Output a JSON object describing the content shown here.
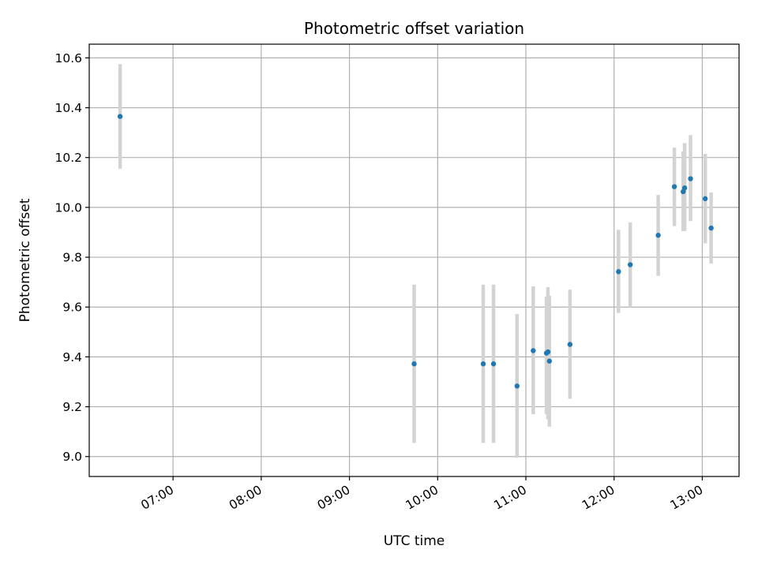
{
  "chart_data": {
    "type": "scatter",
    "title": "Photometric offset variation",
    "xlabel": "UTC time",
    "ylabel": "Photometric offset",
    "x_is_time": true,
    "xlim": [
      "06:03",
      "13:25"
    ],
    "ylim": [
      8.92,
      10.655
    ],
    "grid": true,
    "x_ticks": [
      "07:00",
      "08:00",
      "09:00",
      "10:00",
      "11:00",
      "12:00",
      "13:00"
    ],
    "y_ticks": [
      "9.0",
      "9.2",
      "9.4",
      "9.6",
      "9.8",
      "10.0",
      "10.2",
      "10.4",
      "10.6"
    ],
    "colors": {
      "point": "#1f77b4",
      "error_bar": "#d3d3d3",
      "grid": "#b0b0b0"
    },
    "points": [
      {
        "x": "06:24",
        "y": 10.365,
        "ylow": 10.155,
        "yhigh": 10.575
      },
      {
        "x": "09:44",
        "y": 9.372,
        "ylow": 9.055,
        "yhigh": 9.69
      },
      {
        "x": "10:31",
        "y": 9.372,
        "ylow": 9.055,
        "yhigh": 9.69
      },
      {
        "x": "10:38",
        "y": 9.372,
        "ylow": 9.055,
        "yhigh": 9.69
      },
      {
        "x": "10:54",
        "y": 9.283,
        "ylow": 8.995,
        "yhigh": 9.572
      },
      {
        "x": "11:05",
        "y": 9.425,
        "ylow": 9.17,
        "yhigh": 9.683
      },
      {
        "x": "11:14",
        "y": 9.415,
        "ylow": 9.17,
        "yhigh": 9.642
      },
      {
        "x": "11:15",
        "y": 9.42,
        "ylow": 9.15,
        "yhigh": 9.68
      },
      {
        "x": "11:16",
        "y": 9.383,
        "ylow": 9.12,
        "yhigh": 9.646
      },
      {
        "x": "11:30",
        "y": 9.45,
        "ylow": 9.232,
        "yhigh": 9.67
      },
      {
        "x": "12:03",
        "y": 9.742,
        "ylow": 9.576,
        "yhigh": 9.91
      },
      {
        "x": "12:11",
        "y": 9.77,
        "ylow": 9.6,
        "yhigh": 9.94
      },
      {
        "x": "12:30",
        "y": 9.888,
        "ylow": 9.725,
        "yhigh": 10.05
      },
      {
        "x": "12:41",
        "y": 10.083,
        "ylow": 9.925,
        "yhigh": 10.24
      },
      {
        "x": "12:47",
        "y": 10.063,
        "ylow": 9.905,
        "yhigh": 10.225
      },
      {
        "x": "12:48",
        "y": 10.078,
        "ylow": 9.905,
        "yhigh": 10.258
      },
      {
        "x": "12:52",
        "y": 10.115,
        "ylow": 9.945,
        "yhigh": 10.29
      },
      {
        "x": "13:02",
        "y": 10.035,
        "ylow": 9.855,
        "yhigh": 10.215
      },
      {
        "x": "13:06",
        "y": 9.917,
        "ylow": 9.775,
        "yhigh": 10.06
      }
    ]
  }
}
